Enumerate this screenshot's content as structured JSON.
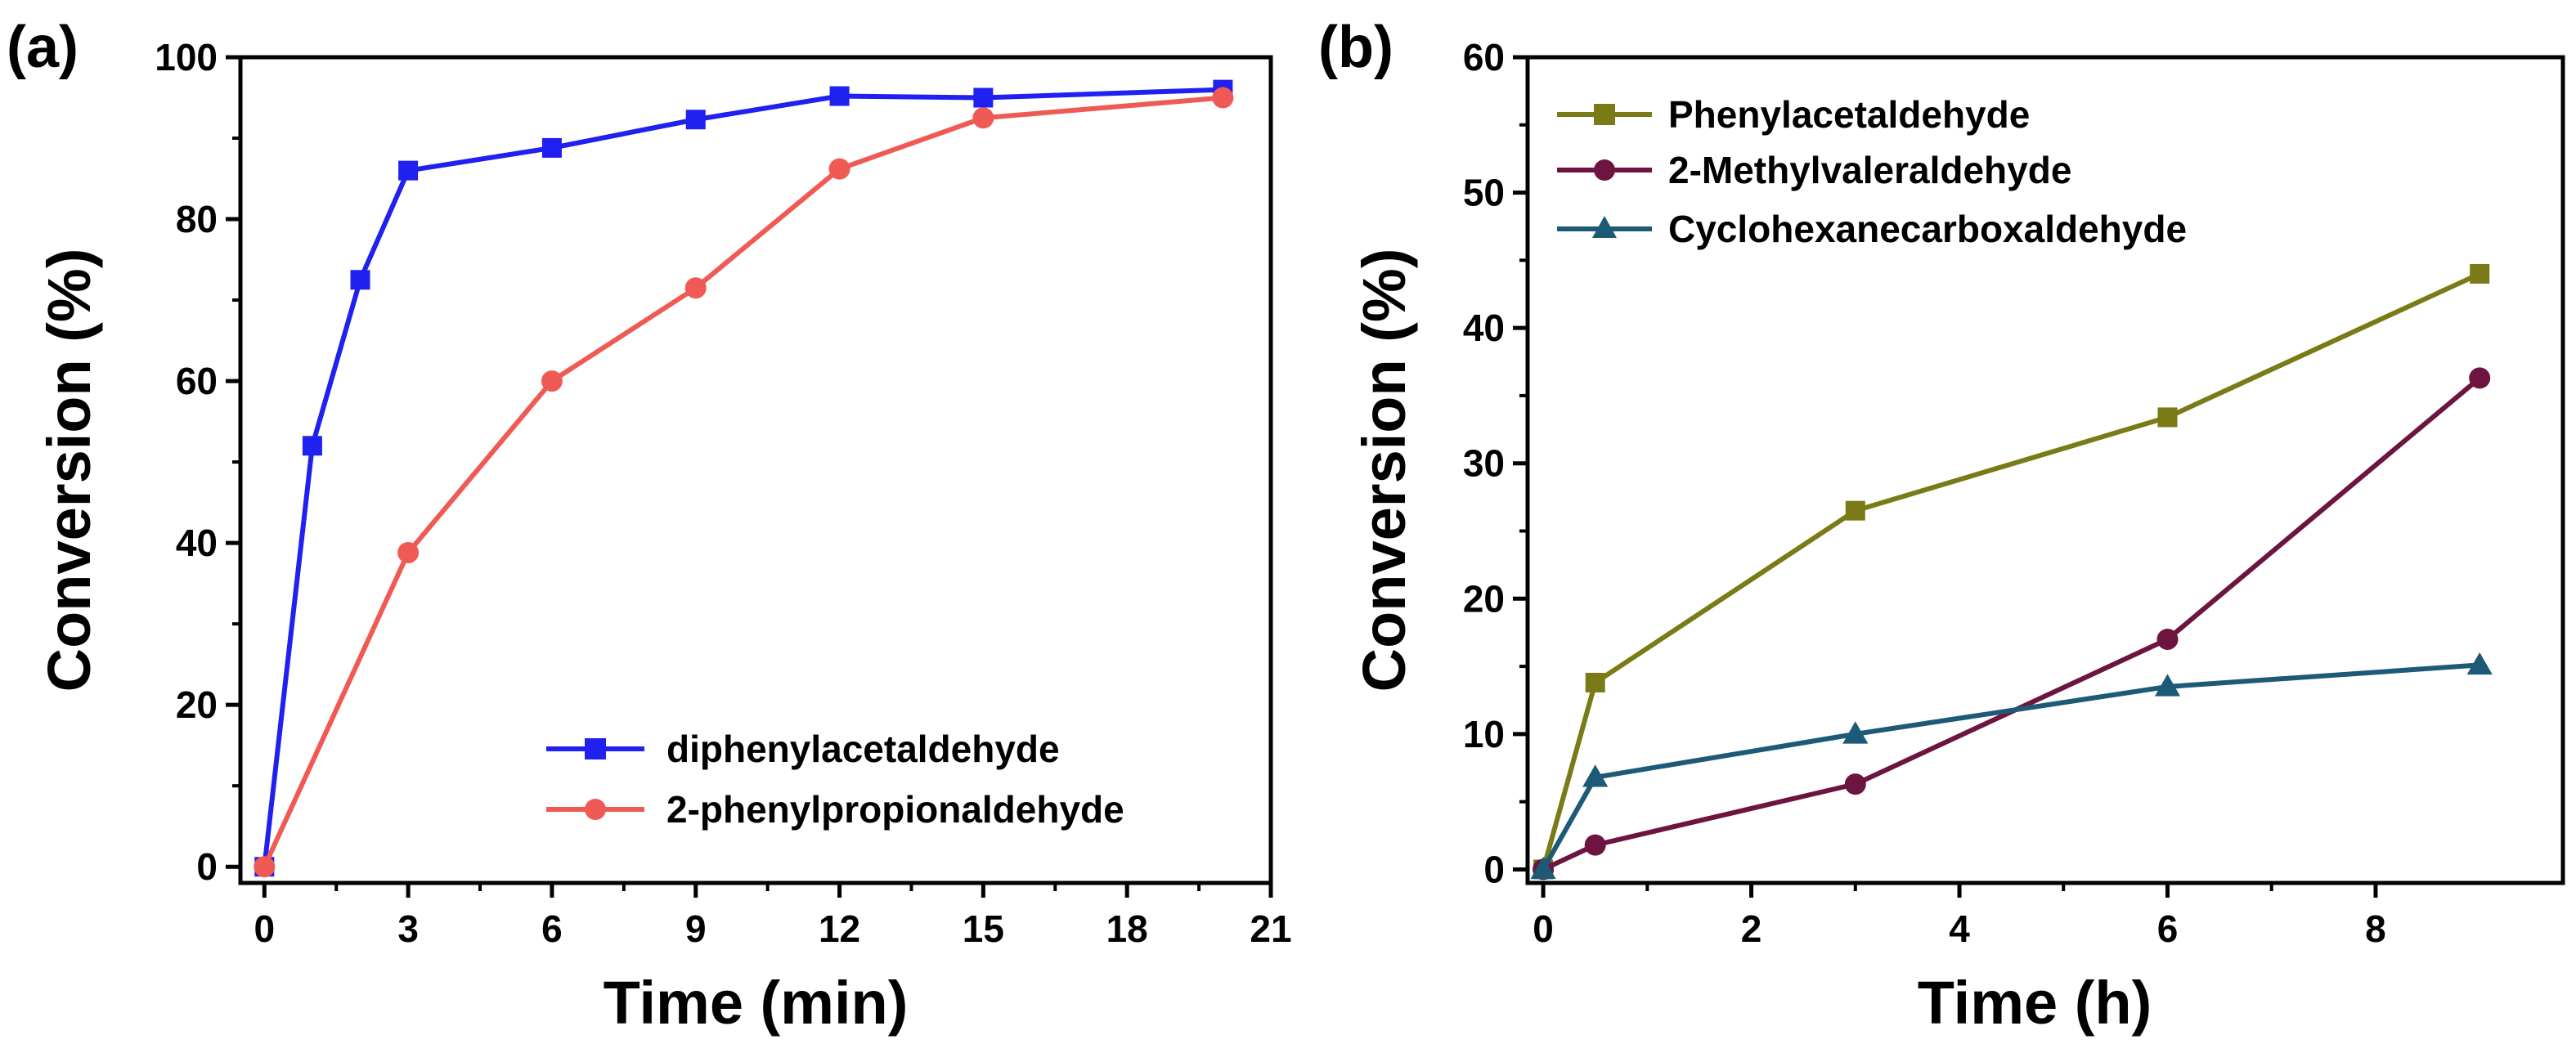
{
  "chart_data": [
    {
      "panel": "(a)",
      "type": "line",
      "xlabel": "Time (min)",
      "ylabel": "Conversion (%)",
      "xlim": [
        -0.5,
        21
      ],
      "ylim": [
        -2,
        100
      ],
      "xticks": [
        0,
        3,
        6,
        9,
        12,
        15,
        18,
        21
      ],
      "yticks": [
        0,
        20,
        40,
        60,
        80,
        100
      ],
      "legend_position": "bottom-right",
      "series": [
        {
          "name": "diphenylacetaldehyde",
          "color": "#2020f0",
          "marker": "square",
          "x": [
            0,
            1,
            2,
            3,
            6,
            9,
            12,
            15,
            20
          ],
          "y": [
            0,
            52,
            72.5,
            86,
            88.8,
            92.3,
            95.2,
            95,
            96
          ]
        },
        {
          "name": "2-phenylpropionaldehyde",
          "color": "#f05a55",
          "marker": "circle",
          "x": [
            0,
            3,
            6,
            9,
            12,
            15,
            20
          ],
          "y": [
            0,
            38.8,
            60,
            71.5,
            86.2,
            92.5,
            95
          ]
        }
      ]
    },
    {
      "panel": "(b)",
      "type": "line",
      "xlabel": "Time (h)",
      "ylabel": "Conversion (%)",
      "xlim": [
        -0.15,
        9.8
      ],
      "ylim": [
        -1,
        60
      ],
      "xticks": [
        0,
        2,
        4,
        6,
        8
      ],
      "yticks": [
        0,
        10,
        20,
        30,
        40,
        50,
        60
      ],
      "legend_position": "top-left",
      "series": [
        {
          "name": "Phenylacetaldehyde",
          "color": "#7a7a16",
          "marker": "square",
          "x": [
            0,
            0.5,
            3,
            6,
            9
          ],
          "y": [
            0,
            13.8,
            26.5,
            33.4,
            44
          ]
        },
        {
          "name": "2-Methylvaleraldehyde",
          "color": "#6e1440",
          "marker": "circle",
          "x": [
            0,
            0.5,
            3,
            6,
            9
          ],
          "y": [
            0,
            1.8,
            6.3,
            17,
            36.3
          ]
        },
        {
          "name": "Cyclohexanecarboxaldehyde",
          "color": "#1d5a78",
          "marker": "triangle",
          "x": [
            0,
            0.5,
            3,
            6,
            9
          ],
          "y": [
            0,
            6.8,
            10,
            13.5,
            15.1
          ]
        }
      ]
    }
  ]
}
